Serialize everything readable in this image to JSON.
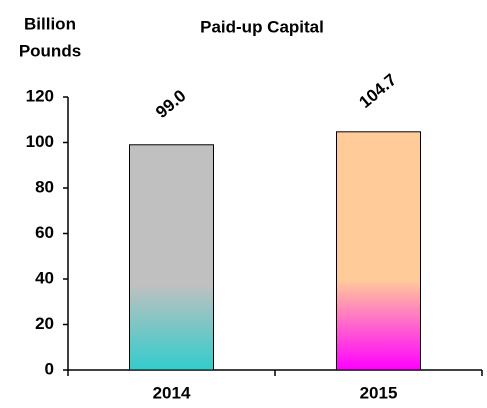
{
  "chart_data": {
    "type": "bar",
    "title": "Paid-up Capital",
    "ylabel": [
      "Billion",
      "Pounds"
    ],
    "categories": [
      "2014",
      "2015"
    ],
    "values": [
      99.0,
      104.7
    ],
    "value_labels": [
      "99.0",
      "104.7"
    ],
    "colors": [
      "#c0c0c0",
      "#ffcc99"
    ],
    "gradient_colors": [
      "#33cccc",
      "#ff00ff"
    ],
    "ylim": [
      0,
      120
    ],
    "yticks": [
      0,
      20,
      40,
      60,
      80,
      100,
      120
    ],
    "grid": false
  }
}
